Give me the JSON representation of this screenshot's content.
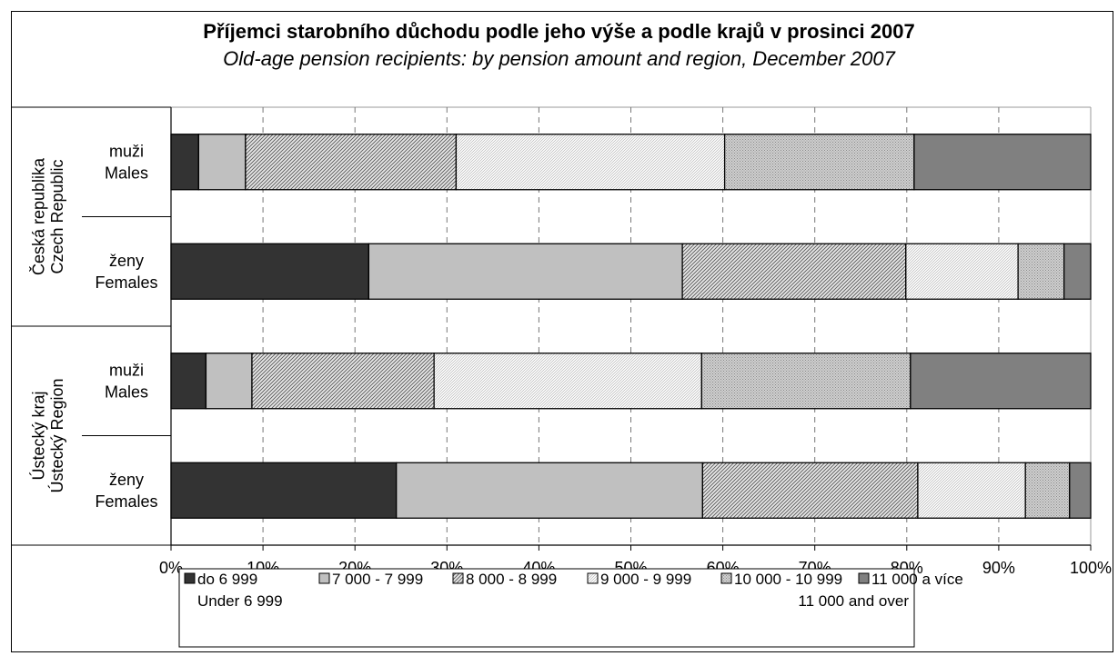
{
  "chart_data": {
    "type": "bar",
    "orientation": "horizontal",
    "stacked": "percent",
    "title": "Příjemci starobního důchodu podle jeho výše a podle krajů v prosinci 2007",
    "subtitle": "Old-age pension recipients: by pension amount and region, December 2007",
    "xlim": [
      0,
      100
    ],
    "x_ticks": [
      "0%",
      "10%",
      "20%",
      "30%",
      "40%",
      "50%",
      "60%",
      "70%",
      "80%",
      "90%",
      "100%"
    ],
    "grid": "vertical dashed",
    "legend_position": "bottom",
    "groups": [
      {
        "label": [
          "Česká republika",
          "Czech Republic"
        ],
        "categories": [
          0,
          1
        ]
      },
      {
        "label": [
          "Ústecký kraj",
          "Ústecký Region"
        ],
        "categories": [
          2,
          3
        ]
      }
    ],
    "categories": [
      [
        "muži",
        "Males"
      ],
      [
        "ženy",
        "Females"
      ],
      [
        "muži",
        "Males"
      ],
      [
        "ženy",
        "Females"
      ]
    ],
    "series": [
      {
        "name": [
          "do 6 999",
          "Under 6 999"
        ],
        "fill": "#333333",
        "pattern": "solid",
        "values": [
          3.0,
          21.5,
          3.8,
          24.5
        ]
      },
      {
        "name": [
          "7 000 - 7 999"
        ],
        "fill": "#c0c0c0",
        "pattern": "solid",
        "values": [
          5.1,
          34.1,
          5.0,
          33.3
        ]
      },
      {
        "name": [
          "8 000 - 8 999"
        ],
        "fill": "#dcdcdc",
        "pattern": "diagonal",
        "values": [
          22.9,
          24.3,
          19.8,
          23.4
        ]
      },
      {
        "name": [
          "9 000 - 9 999"
        ],
        "fill": "#f2f2f2",
        "pattern": "fine",
        "values": [
          29.2,
          12.2,
          29.1,
          11.7
        ]
      },
      {
        "name": [
          "10 000 - 10 999"
        ],
        "fill": "#d4d4d4",
        "pattern": "dots",
        "values": [
          20.6,
          5.0,
          22.7,
          4.8
        ]
      },
      {
        "name": [
          "11 000 a více",
          "11 000 and over"
        ],
        "fill": "#808080",
        "pattern": "solid",
        "values": [
          19.2,
          2.9,
          19.6,
          2.3
        ]
      }
    ]
  }
}
